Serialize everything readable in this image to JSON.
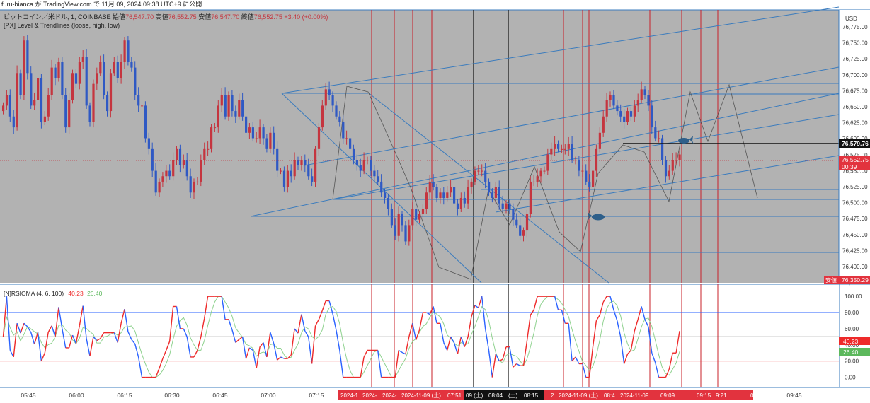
{
  "header": {
    "publish_line": "furu-bianca が TradingView.com で 11月 09, 2024 09:38 UTC+9 に公開",
    "symbol_line": "ビットコイン／米ドル, 1, COINBASE",
    "ohlc": {
      "open_label": "始値",
      "open": "76,547.70",
      "high_label": "高値",
      "high": "76,552.75",
      "low_label": "安値",
      "low": "76,547.70",
      "close_label": "終値",
      "close": "76,552.75",
      "change": "+3.40 (+0.00%)"
    },
    "indicator_line": "[PX] Level & Trendlines (loose, high, low)"
  },
  "price_axis": {
    "currency": "USD",
    "ticks": [
      "76,775.00",
      "76,750.00",
      "76,725.00",
      "76,700.00",
      "76,675.00",
      "76,650.00",
      "76,625.00",
      "76,600.00",
      "76,575.00",
      "76,550.00",
      "76,525.00",
      "76,500.00",
      "76,475.00",
      "76,450.00",
      "76,425.00",
      "76,400.00",
      "76,375.00"
    ],
    "level_label": "76,579.76",
    "price_label": "76,552.75",
    "countdown": "00:39",
    "low_label_prefix": "安値",
    "low_label": "76,350.29"
  },
  "rsi_panel": {
    "title": "[N]RSIOMA (4, 6, 100)",
    "value_red": "40.23",
    "value_green": "26.40",
    "ticks": [
      "100.00",
      "80.00",
      "60.00",
      "40.00",
      "20.00",
      "0.00"
    ],
    "label_red": "40.23",
    "label_green": "26.40"
  },
  "time_axis": {
    "ticks": [
      "05:45",
      "06:00",
      "06:15",
      "06:30",
      "06:45",
      "07:00",
      "07:15",
      "09:45"
    ],
    "marker_labels": [
      "2024-1",
      "2024-",
      "2024-",
      "2024-11-09 (土)",
      "07:51",
      "09 (土)",
      "08:04",
      "(土)",
      "08:15",
      "2",
      "2024-11-09 (土)",
      "08:4",
      "2024-11-09",
      "09:09",
      "09:15",
      "9:21",
      "0"
    ]
  },
  "colors": {
    "plot_bg": "#b2b2b2",
    "candle_up": "#c5353f",
    "candle_down": "#2f59c4",
    "trendline": "#3a7bbd",
    "red_vline": "#c8202a",
    "rsi_red": "#ee2a2a",
    "rsi_blue": "#2962ff",
    "rsi_green": "#8fd28f",
    "level_line": "#111111"
  },
  "chart_data": {
    "type": "candlestick",
    "price_range": [
      76345,
      76785
    ],
    "rsi_range": [
      -10,
      108
    ],
    "closes": [
      76640,
      76660,
      76620,
      76600,
      76700,
      76660,
      76760,
      76700,
      76640,
      76650,
      76690,
      76610,
      76620,
      76660,
      76710,
      76690,
      76720,
      76660,
      76600,
      76650,
      76700,
      76680,
      76720,
      76730,
      76640,
      76610,
      76680,
      76700,
      76720,
      76660,
      76630,
      76700,
      76720,
      76690,
      76720,
      76760,
      76720,
      76710,
      76660,
      76640,
      76640,
      76580,
      76560,
      76520,
      76480,
      76500,
      76510,
      76520,
      76510,
      76540,
      76560,
      76530,
      76540,
      76510,
      76480,
      76500,
      76500,
      76540,
      76560,
      76560,
      76600,
      76600,
      76640,
      76660,
      76620,
      76660,
      76630,
      76620,
      76650,
      76620,
      76590,
      76600,
      76580,
      76580,
      76600,
      76580,
      76560,
      76590,
      76560,
      76520,
      76520,
      76490,
      76520,
      76510,
      76540,
      76530,
      76540,
      76530,
      76510,
      76500,
      76560,
      76600,
      76640,
      76670,
      76660,
      76640,
      76620,
      76610,
      76580,
      76580,
      76560,
      76540,
      76530,
      76520,
      76540,
      76540,
      76520,
      76510,
      76500,
      76480,
      76470,
      76450,
      76420,
      76400,
      76440,
      76420,
      76390,
      76420,
      76450,
      76430,
      76440,
      76450,
      76480,
      76500,
      76490,
      76470,
      76480,
      76470,
      76480,
      76490,
      76460,
      76450,
      76470,
      76460,
      76490,
      76500,
      76520,
      76520,
      76520,
      76500,
      76480,
      76470,
      76490,
      76460,
      76450,
      76460,
      76450,
      76430,
      76420,
      76400,
      76410,
      76440,
      76500,
      76500,
      76510,
      76520,
      76520,
      76550,
      76560,
      76570,
      76560,
      76560,
      76560,
      76570,
      76540,
      76540,
      76520,
      76520,
      76500,
      76490,
      76520,
      76560,
      76590,
      76620,
      76650,
      76660,
      76640,
      76630,
      76620,
      76610,
      76630,
      76620,
      76640,
      76650,
      76670,
      76660,
      76640,
      76600,
      76580,
      76580,
      76540,
      76510,
      76520,
      76540,
      76540,
      76550
    ]
  }
}
